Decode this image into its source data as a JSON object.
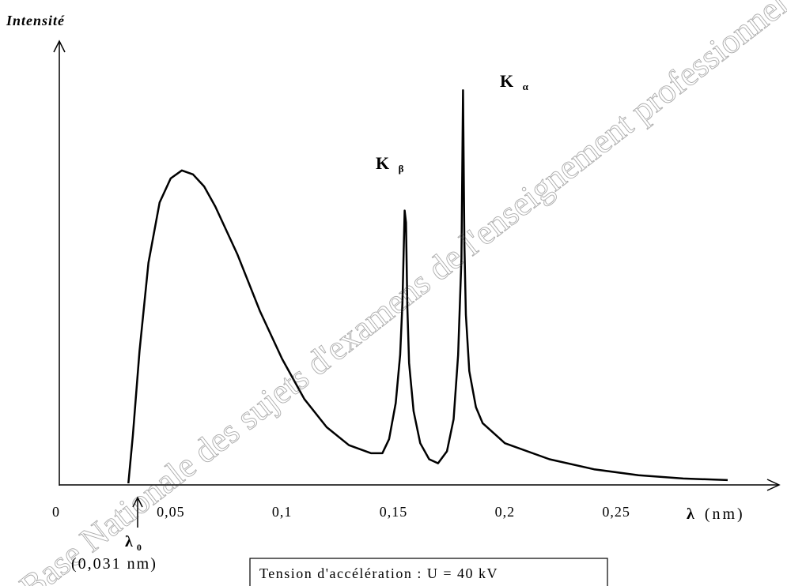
{
  "chart_data": {
    "type": "line",
    "ylabel": "Intensité",
    "xlabel_symbol": "λ",
    "xlabel_unit": "(nm)",
    "xlim": [
      0,
      0.3
    ],
    "ylim": [
      0,
      1
    ],
    "x_ticks": [
      {
        "value": 0,
        "label": "0"
      },
      {
        "value": 0.05,
        "label": "0,05"
      },
      {
        "value": 0.1,
        "label": "0,1"
      },
      {
        "value": 0.15,
        "label": "0,15"
      },
      {
        "value": 0.2,
        "label": "0,2"
      },
      {
        "value": 0.25,
        "label": "0,25"
      }
    ],
    "series": [
      {
        "color": "#000000",
        "x": [
          0.031,
          0.033,
          0.036,
          0.04,
          0.045,
          0.05,
          0.055,
          0.06,
          0.065,
          0.07,
          0.08,
          0.09,
          0.1,
          0.11,
          0.12,
          0.13,
          0.14,
          0.145,
          0.148,
          0.151,
          0.153,
          0.154,
          0.155,
          0.1556,
          0.1562,
          0.157,
          0.159,
          0.162,
          0.166,
          0.17,
          0.174,
          0.177,
          0.179,
          0.1805,
          0.1812,
          0.1818,
          0.1825,
          0.184,
          0.187,
          0.19,
          0.2,
          0.22,
          0.24,
          0.26,
          0.28,
          0.3
        ],
        "y": [
          0.0,
          0.12,
          0.33,
          0.55,
          0.7,
          0.76,
          0.78,
          0.77,
          0.74,
          0.69,
          0.57,
          0.43,
          0.31,
          0.21,
          0.14,
          0.095,
          0.075,
          0.075,
          0.11,
          0.2,
          0.32,
          0.45,
          0.68,
          0.65,
          0.44,
          0.3,
          0.18,
          0.1,
          0.06,
          0.05,
          0.08,
          0.16,
          0.32,
          0.56,
          0.98,
          0.6,
          0.42,
          0.28,
          0.19,
          0.15,
          0.1,
          0.06,
          0.035,
          0.02,
          0.012,
          0.008
        ]
      }
    ],
    "annotations": {
      "k_beta": {
        "letter": "K",
        "subscript": "β"
      },
      "k_alpha": {
        "letter": "K",
        "subscript": "α"
      },
      "lambda0": {
        "letter": "λ",
        "subscript": "0",
        "value_label": "(0,031 nm)"
      }
    },
    "info_box": "Tension d'accélération : U = 40 kV"
  },
  "watermark": "Base Nationale des sujets d'examens de l'enseignement professionnel Reseau SCEREN"
}
